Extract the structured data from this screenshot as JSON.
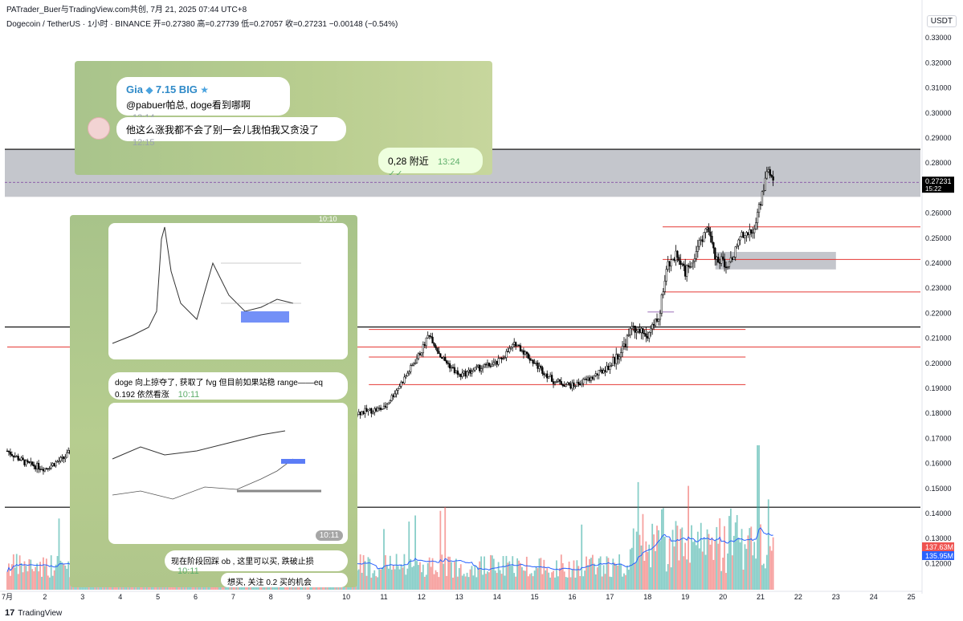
{
  "header": {
    "byline": "PATrader_Buer与TradingView.com共创,  7月 21, 2025 07:44 UTC+8",
    "symbol_line": "Dogecoin / TetherUS · 1小时 · BINANCE  开=0.27380  高=0.27739  低=0.27057  收=0.27231  −0.00148 (−0.54%)",
    "currency": "USDT"
  },
  "footer": {
    "logo": "17",
    "brand": "TradingView"
  },
  "colors": {
    "up": "#26a69a",
    "down": "#ef5350",
    "level_red": "#e53935",
    "level_black": "#000000",
    "ma": "#2962ff",
    "zone": "#b2b5be"
  },
  "chart_data": {
    "type": "candlestick",
    "title": "Dogecoin / TetherUS · 1小时 · BINANCE",
    "ylabel": "USDT",
    "ylim": [
      0.11,
      0.34
    ],
    "y_ticks": [
      "0.33000",
      "0.32000",
      "0.31000",
      "0.30000",
      "0.29000",
      "0.28000",
      "0.27000",
      "0.26000",
      "0.25000",
      "0.24000",
      "0.23000",
      "0.22000",
      "0.21000",
      "0.20000",
      "0.19000",
      "0.18000",
      "0.17000",
      "0.16000",
      "0.15000",
      "0.14000",
      "0.13000",
      "0.12000"
    ],
    "x_ticks": [
      "7月",
      "2",
      "3",
      "4",
      "5",
      "6",
      "7",
      "8",
      "9",
      "10",
      "11",
      "12",
      "13",
      "14",
      "15",
      "16",
      "17",
      "18",
      "19",
      "20",
      "21",
      "22",
      "23",
      "24",
      "25"
    ],
    "ohlc_last": {
      "open": 0.2738,
      "high": 0.27739,
      "low": 0.27057,
      "close": 0.27231,
      "change": -0.00148,
      "change_pct": "−0.54%"
    },
    "close_path": [
      [
        1.0,
        0.165
      ],
      [
        1.5,
        0.16
      ],
      [
        2.0,
        0.158
      ],
      [
        2.5,
        0.162
      ],
      [
        3.0,
        0.17
      ],
      [
        3.5,
        0.174
      ],
      [
        4.0,
        0.172
      ],
      [
        4.5,
        0.17
      ],
      [
        5.0,
        0.168
      ],
      [
        5.5,
        0.165
      ],
      [
        6.0,
        0.166
      ],
      [
        6.5,
        0.167
      ],
      [
        7.0,
        0.166
      ],
      [
        7.5,
        0.17
      ],
      [
        8.0,
        0.172
      ],
      [
        8.5,
        0.17
      ],
      [
        9.0,
        0.171
      ],
      [
        9.5,
        0.172
      ],
      [
        10.0,
        0.176
      ],
      [
        10.2,
        0.18
      ],
      [
        10.6,
        0.181
      ],
      [
        11.0,
        0.182
      ],
      [
        11.5,
        0.193
      ],
      [
        12.0,
        0.205
      ],
      [
        12.2,
        0.212
      ],
      [
        12.5,
        0.203
      ],
      [
        13.0,
        0.195
      ],
      [
        13.5,
        0.198
      ],
      [
        14.0,
        0.2
      ],
      [
        14.5,
        0.208
      ],
      [
        15.0,
        0.2
      ],
      [
        15.5,
        0.193
      ],
      [
        16.0,
        0.191
      ],
      [
        16.5,
        0.194
      ],
      [
        17.0,
        0.199
      ],
      [
        17.3,
        0.205
      ],
      [
        17.6,
        0.214
      ],
      [
        18.0,
        0.211
      ],
      [
        18.3,
        0.218
      ],
      [
        18.5,
        0.238
      ],
      [
        18.8,
        0.244
      ],
      [
        19.0,
        0.236
      ],
      [
        19.3,
        0.245
      ],
      [
        19.6,
        0.255
      ],
      [
        19.8,
        0.241
      ],
      [
        20.2,
        0.24
      ],
      [
        20.5,
        0.252
      ],
      [
        20.8,
        0.252
      ],
      [
        21.0,
        0.265
      ],
      [
        21.2,
        0.278
      ],
      [
        21.35,
        0.272
      ]
    ],
    "levels_red": [
      0.2545,
      0.2415,
      0.2285,
      0.2135,
      0.2065,
      0.2025,
      0.1915
    ],
    "levels_black": [
      0.2855,
      0.2145,
      0.1425
    ],
    "price_label": {
      "value": "0.27231",
      "countdown": "15:22"
    },
    "volume_labels": {
      "volume": "137.63M",
      "volume_ma": "135.95M"
    }
  },
  "chat1": {
    "sender": "Gia",
    "badge": "7.15 BIG",
    "msg1": "@pabuer帕总, doge看到哪啊",
    "time1": "12:14",
    "msg2": "他这么涨我都不会了别一会儿我怕我又贪没了",
    "time2": "12:15",
    "reply": "0,28 附近",
    "reply_time": "13:24"
  },
  "chat2": {
    "top_time": "10:10",
    "caption1": "doge 向上掠夺了, 获取了 fvg 但目前如果站稳 range——eq 0.192 依然看涨",
    "caption1_time": "10:11",
    "image2_time": "10:11",
    "msg2": "现在阶段回踩 ob , 这里可以买, 跌破止损",
    "msg2_time": "10:11",
    "msg3": "想买, 关注 0.2 买的机会"
  }
}
